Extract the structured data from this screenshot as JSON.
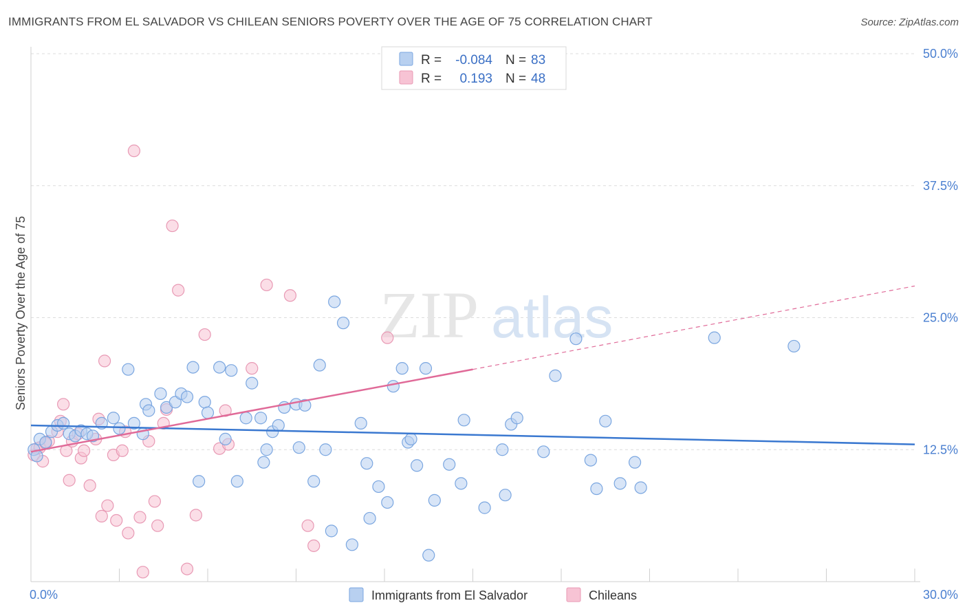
{
  "title": "IMMIGRANTS FROM EL SALVADOR VS CHILEAN SENIORS POVERTY OVER THE AGE OF 75 CORRELATION CHART",
  "source": "Source: ZipAtlas.com",
  "watermark": {
    "zip": "ZIP",
    "atlas": "atlas"
  },
  "colors": {
    "blue": "#3a78d0",
    "blue_fill": "#b8d0f0",
    "pink": "#e06a98",
    "pink_fill": "#f7c3d4",
    "axis_text": "#4a7fd0"
  },
  "legend": {
    "rows": [
      {
        "r_label": "R =",
        "r_value": "-0.084",
        "n_label": "N =",
        "n_value": "83"
      },
      {
        "r_label": "R =",
        "r_value": "0.193",
        "n_label": "N =",
        "n_value": "48"
      }
    ]
  },
  "bottom_legend": [
    "Immigrants from El Salvador",
    "Chileans"
  ],
  "chart_data": {
    "type": "scatter",
    "title": "IMMIGRANTS FROM EL SALVADOR VS CHILEAN SENIORS POVERTY OVER THE AGE OF 75 CORRELATION CHART",
    "xlabel": "",
    "ylabel": "Seniors Poverty Over the Age of 75",
    "xlim": [
      0,
      30
    ],
    "ylim": [
      0,
      50
    ],
    "x_tick_labels": [
      "0.0%",
      "30.0%"
    ],
    "y_ticks": [
      12.5,
      25,
      37.5,
      50
    ],
    "y_tick_labels": [
      "12.5%",
      "25.0%",
      "37.5%",
      "50.0%"
    ],
    "grid": "horizontal dashed",
    "legend_position": "top-center",
    "series": [
      {
        "name": "Immigrants from El Salvador",
        "color": "#3a78d0",
        "trend": {
          "x": [
            0,
            30
          ],
          "y": [
            14.8,
            13.0
          ]
        },
        "points": [
          [
            0.1,
            12.5
          ],
          [
            0.3,
            13.5
          ],
          [
            0.5,
            13.2
          ],
          [
            0.7,
            14.2
          ],
          [
            0.9,
            14.8
          ],
          [
            1.1,
            15.0
          ],
          [
            1.3,
            14.0
          ],
          [
            1.5,
            13.8
          ],
          [
            1.7,
            14.3
          ],
          [
            1.9,
            14.0
          ],
          [
            2.1,
            13.8
          ],
          [
            2.4,
            15.0
          ],
          [
            2.8,
            15.5
          ],
          [
            3.0,
            14.5
          ],
          [
            3.3,
            20.1
          ],
          [
            3.5,
            15.0
          ],
          [
            3.8,
            14.0
          ],
          [
            3.9,
            16.8
          ],
          [
            4.0,
            16.2
          ],
          [
            4.4,
            17.8
          ],
          [
            4.6,
            16.5
          ],
          [
            4.9,
            17.0
          ],
          [
            5.1,
            17.8
          ],
          [
            5.3,
            17.5
          ],
          [
            5.5,
            20.3
          ],
          [
            5.7,
            9.5
          ],
          [
            5.9,
            17.0
          ],
          [
            6.0,
            16.0
          ],
          [
            6.4,
            20.3
          ],
          [
            6.6,
            13.5
          ],
          [
            6.8,
            20.0
          ],
          [
            7.0,
            9.5
          ],
          [
            7.3,
            15.5
          ],
          [
            7.5,
            18.8
          ],
          [
            7.8,
            15.5
          ],
          [
            7.9,
            11.3
          ],
          [
            8.0,
            12.5
          ],
          [
            8.2,
            14.2
          ],
          [
            8.4,
            14.8
          ],
          [
            8.6,
            16.5
          ],
          [
            9.0,
            16.8
          ],
          [
            9.1,
            12.7
          ],
          [
            9.3,
            16.7
          ],
          [
            9.6,
            9.5
          ],
          [
            9.8,
            20.5
          ],
          [
            10.0,
            12.5
          ],
          [
            10.2,
            4.8
          ],
          [
            10.3,
            26.5
          ],
          [
            10.6,
            24.5
          ],
          [
            10.9,
            3.5
          ],
          [
            11.2,
            15.0
          ],
          [
            11.4,
            11.2
          ],
          [
            11.5,
            6.0
          ],
          [
            11.8,
            9.0
          ],
          [
            12.1,
            7.5
          ],
          [
            12.3,
            18.5
          ],
          [
            12.6,
            20.2
          ],
          [
            12.8,
            13.2
          ],
          [
            12.9,
            13.5
          ],
          [
            13.1,
            11.0
          ],
          [
            13.4,
            20.2
          ],
          [
            13.5,
            2.5
          ],
          [
            13.7,
            7.7
          ],
          [
            14.2,
            11.1
          ],
          [
            14.6,
            9.3
          ],
          [
            14.7,
            15.3
          ],
          [
            15.4,
            7.0
          ],
          [
            16.0,
            12.5
          ],
          [
            16.1,
            8.2
          ],
          [
            16.3,
            14.9
          ],
          [
            16.5,
            15.5
          ],
          [
            17.4,
            12.3
          ],
          [
            17.8,
            19.5
          ],
          [
            18.5,
            23.0
          ],
          [
            19.0,
            11.5
          ],
          [
            19.2,
            8.8
          ],
          [
            19.5,
            15.2
          ],
          [
            20.0,
            9.3
          ],
          [
            20.5,
            11.3
          ],
          [
            20.7,
            8.9
          ],
          [
            23.2,
            23.1
          ],
          [
            25.9,
            22.3
          ],
          [
            0.2,
            11.9
          ]
        ]
      },
      {
        "name": "Chileans",
        "color": "#e06a98",
        "trend": {
          "x": [
            0,
            15
          ],
          "y": [
            12.3,
            20.1
          ]
        },
        "trend_dashed": {
          "x": [
            15,
            30
          ],
          "y": [
            20.1,
            28.0
          ]
        },
        "points": [
          [
            0.1,
            12.0
          ],
          [
            0.2,
            12.6
          ],
          [
            0.4,
            11.4
          ],
          [
            0.6,
            13.3
          ],
          [
            0.9,
            14.2
          ],
          [
            1.0,
            15.2
          ],
          [
            1.1,
            16.8
          ],
          [
            1.2,
            12.4
          ],
          [
            1.3,
            9.6
          ],
          [
            1.4,
            13.3
          ],
          [
            1.6,
            14.0
          ],
          [
            1.7,
            11.7
          ],
          [
            1.8,
            12.4
          ],
          [
            2.0,
            9.1
          ],
          [
            2.2,
            13.5
          ],
          [
            2.3,
            15.4
          ],
          [
            2.4,
            6.2
          ],
          [
            2.5,
            20.9
          ],
          [
            2.6,
            7.2
          ],
          [
            2.8,
            12.0
          ],
          [
            2.9,
            5.8
          ],
          [
            3.1,
            12.4
          ],
          [
            3.2,
            14.2
          ],
          [
            3.3,
            4.6
          ],
          [
            3.5,
            40.8
          ],
          [
            3.7,
            6.1
          ],
          [
            3.8,
            0.9
          ],
          [
            4.0,
            13.3
          ],
          [
            4.2,
            7.6
          ],
          [
            4.3,
            5.3
          ],
          [
            4.5,
            15.0
          ],
          [
            4.6,
            16.3
          ],
          [
            4.8,
            33.7
          ],
          [
            5.0,
            27.6
          ],
          [
            5.3,
            1.2
          ],
          [
            5.6,
            6.3
          ],
          [
            5.9,
            23.4
          ],
          [
            6.4,
            12.6
          ],
          [
            6.6,
            16.2
          ],
          [
            6.7,
            13.0
          ],
          [
            7.5,
            20.2
          ],
          [
            8.0,
            28.1
          ],
          [
            8.8,
            27.1
          ],
          [
            9.4,
            5.3
          ],
          [
            9.6,
            3.4
          ],
          [
            12.1,
            23.1
          ],
          [
            0.3,
            12.7
          ],
          [
            0.5,
            13.1
          ]
        ]
      }
    ]
  }
}
